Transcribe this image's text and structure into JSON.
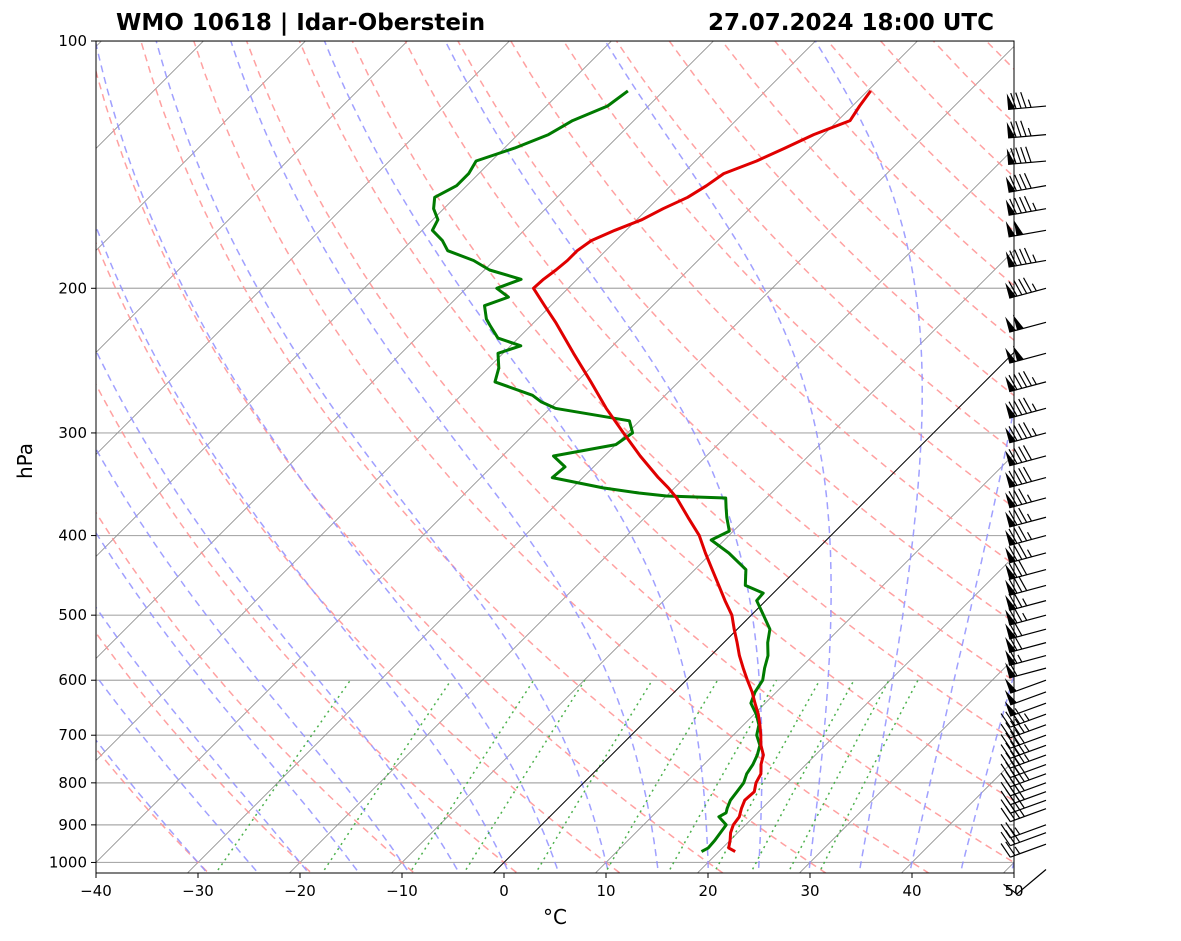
{
  "chart_data": {
    "type": "skew-t",
    "title_left": "WMO 10618 | Idar-Oberstein",
    "title_right": "27.07.2024 18:00 UTC",
    "xlabel": "°C",
    "ylabel": "hPa",
    "xlim": [
      -40,
      50
    ],
    "ylim": [
      1030,
      100
    ],
    "x_ticks": [
      -40,
      -30,
      -20,
      -10,
      0,
      10,
      20,
      30,
      40,
      50
    ],
    "x_tick_labels": [
      "−40",
      "−30",
      "−20",
      "−10",
      "0",
      "10",
      "20",
      "30",
      "40",
      "50"
    ],
    "y_ticks": [
      100,
      200,
      300,
      400,
      500,
      600,
      700,
      800,
      900,
      1000
    ],
    "y_tick_labels": [
      "100",
      "200",
      "300",
      "400",
      "500",
      "600",
      "700",
      "800",
      "900",
      "1000"
    ],
    "colors": {
      "temperature": "#e00000",
      "dewpoint": "#007a00",
      "dry_adiabats": "#ff9090",
      "moist_adiabats": "#8f8fff",
      "mixing_ratio": "#38a838",
      "isotherms": "#888888",
      "isobars": "#aaaaaa",
      "wind_barbs": "#000000",
      "zero_isotherm": "#000000"
    },
    "temperature": {
      "name": "Temperature",
      "pressure": [
        970,
        960,
        940,
        920,
        900,
        880,
        860,
        840,
        820,
        800,
        780,
        760,
        740,
        720,
        700,
        680,
        660,
        640,
        620,
        600,
        580,
        560,
        540,
        520,
        500,
        480,
        460,
        440,
        420,
        400,
        380,
        360,
        350,
        340,
        320,
        300,
        280,
        260,
        240,
        220,
        210,
        200,
        195,
        190,
        185,
        180,
        175,
        170,
        165,
        160,
        155,
        150,
        145,
        140,
        135,
        130,
        125,
        120,
        115
      ],
      "values": [
        21.6,
        20.6,
        20.0,
        19.3,
        18.8,
        18.6,
        18.0,
        17.5,
        17.6,
        16.9,
        16.5,
        15.6,
        14.9,
        13.7,
        12.7,
        11.6,
        10.4,
        9.0,
        7.6,
        6.0,
        4.4,
        2.8,
        1.3,
        -0.3,
        -1.9,
        -4.0,
        -6.1,
        -8.3,
        -10.6,
        -12.9,
        -15.8,
        -18.8,
        -20.6,
        -22.6,
        -26.5,
        -30.4,
        -34.5,
        -38.6,
        -43.1,
        -47.9,
        -50.6,
        -53.4,
        -53.3,
        -53.0,
        -52.8,
        -52.8,
        -52.4,
        -51.1,
        -49.5,
        -48.5,
        -47.2,
        -46.5,
        -46.0,
        -44.0,
        -42.5,
        -41.0,
        -38.8,
        -39.3,
        -39.7
      ]
    },
    "dewpoint": {
      "name": "Dewpoint",
      "pressure": [
        970,
        960,
        940,
        920,
        900,
        880,
        870,
        860,
        840,
        820,
        800,
        780,
        760,
        740,
        720,
        700,
        680,
        660,
        640,
        620,
        600,
        580,
        560,
        540,
        520,
        500,
        480,
        470,
        460,
        440,
        420,
        405,
        395,
        380,
        370,
        360,
        358,
        355,
        350,
        340,
        330,
        320,
        310,
        300,
        290,
        280,
        275,
        270,
        260,
        250,
        240,
        235,
        230,
        222,
        218,
        210,
        205,
        200,
        195,
        190,
        185,
        180,
        175,
        170,
        165,
        160,
        155,
        150,
        145,
        140,
        135,
        130,
        125,
        120,
        115
      ],
      "values": [
        18.3,
        18.6,
        18.5,
        18.3,
        18.1,
        16.6,
        16.9,
        16.6,
        16.1,
        15.9,
        15.7,
        15.1,
        14.8,
        14.3,
        13.6,
        12.3,
        11.5,
        10.2,
        8.6,
        7.9,
        7.5,
        6.5,
        5.6,
        4.3,
        3.2,
        1.2,
        -0.9,
        -1.0,
        -3.5,
        -5.0,
        -8.3,
        -11.3,
        -10.4,
        -12.0,
        -13.0,
        -14.0,
        -20.0,
        -23.0,
        -27.0,
        -33.0,
        -32.8,
        -35.0,
        -30.0,
        -29.5,
        -31.0,
        -39.5,
        -41.5,
        -43.0,
        -48.0,
        -49.0,
        -50.5,
        -49.0,
        -52.0,
        -54.0,
        -55.0,
        -56.5,
        -55.0,
        -57.0,
        -55.5,
        -59.5,
        -62.0,
        -65.5,
        -67.0,
        -69.0,
        -69.5,
        -71.0,
        -72.0,
        -71.0,
        -71.0,
        -71.5,
        -69.0,
        -67.0,
        -66.0,
        -64.0,
        -63.5
      ]
    },
    "wind_barbs": {
      "pressure": [
        1020,
        950,
        920,
        900,
        860,
        840,
        820,
        800,
        780,
        760,
        740,
        720,
        700,
        680,
        660,
        640,
        620,
        600,
        580,
        560,
        540,
        520,
        500,
        480,
        460,
        440,
        420,
        400,
        380,
        360,
        340,
        320,
        300,
        280,
        260,
        240,
        220,
        200,
        185,
        170,
        160,
        150,
        140,
        130,
        120
      ],
      "direction_deg": [
        230,
        250,
        250,
        250,
        250,
        250,
        250,
        250,
        250,
        250,
        250,
        250,
        250,
        250,
        250,
        250,
        250,
        250,
        255,
        255,
        255,
        255,
        255,
        255,
        255,
        255,
        255,
        255,
        255,
        255,
        255,
        255,
        255,
        255,
        255,
        255,
        255,
        255,
        260,
        260,
        260,
        260,
        265,
        265,
        265
      ],
      "speed_kt": [
        10,
        25,
        30,
        25,
        35,
        40,
        40,
        40,
        45,
        40,
        45,
        45,
        40,
        45,
        45,
        50,
        50,
        50,
        60,
        65,
        70,
        70,
        75,
        75,
        80,
        80,
        85,
        85,
        85,
        85,
        90,
        90,
        95,
        95,
        95,
        100,
        100,
        95,
        95,
        100,
        95,
        90,
        90,
        85,
        85
      ]
    }
  }
}
